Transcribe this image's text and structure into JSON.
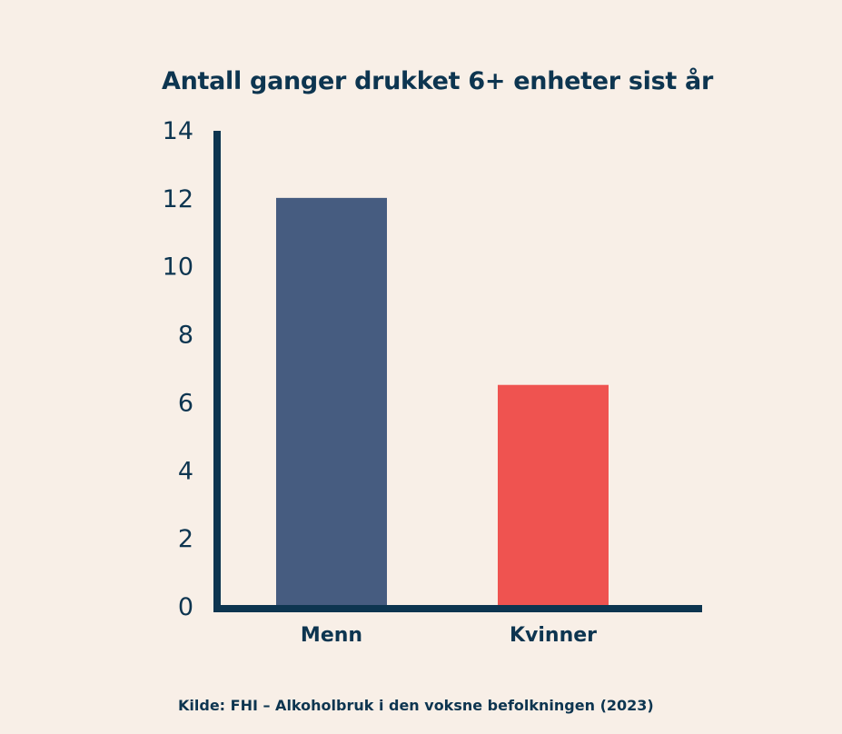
{
  "chart_data": {
    "type": "bar",
    "title": "Antall ganger drukket 6+ enheter sist år",
    "categories": [
      "Menn",
      "Kvinner"
    ],
    "values": [
      12,
      6.5
    ],
    "colors": [
      "#465c80",
      "#ef5350"
    ],
    "axis_color": "#0d3550",
    "background": "#f8efe7",
    "xlabel": "",
    "ylabel": "",
    "ylim": [
      0,
      14
    ],
    "yticks": [
      0,
      2,
      4,
      6,
      8,
      10,
      12,
      14
    ],
    "grid": false,
    "legend": "none"
  },
  "source": "Kilde: FHI – Alkoholbruk i den voksne befolkningen (2023)"
}
